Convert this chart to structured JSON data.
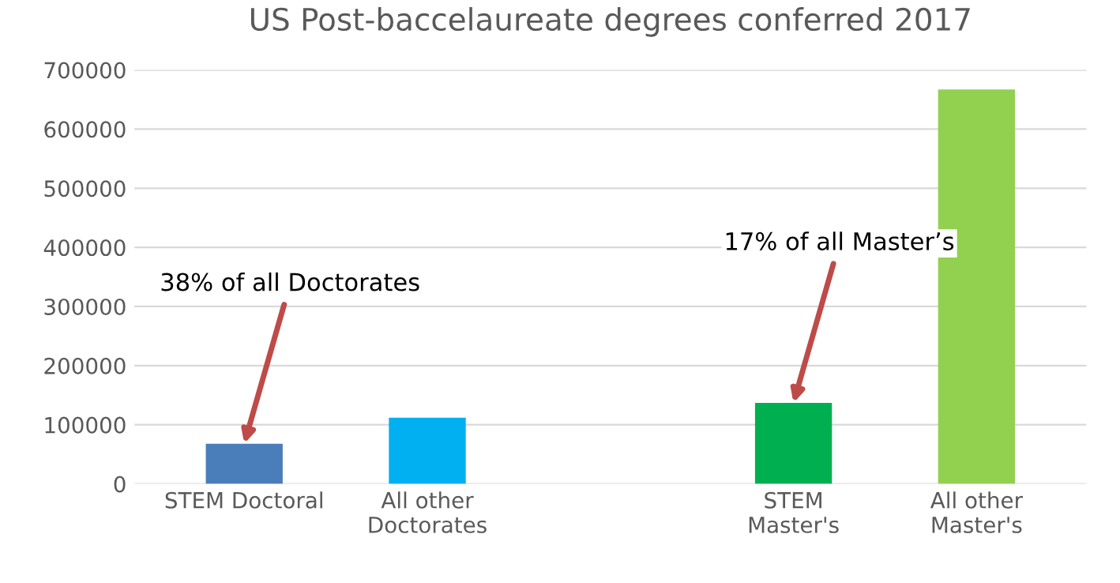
{
  "chart_data": {
    "type": "bar",
    "title": "US Post-baccelaureate degrees conferred 2017",
    "categories": [
      "STEM Doctoral",
      "All other\nDoctorates",
      null,
      "STEM\nMaster's",
      "All other\nMaster's"
    ],
    "values": [
      68000,
      112000,
      null,
      137000,
      667000
    ],
    "colors": [
      "#4a7ebb",
      "#00b0f0",
      "#ffffff",
      "#00b050",
      "#92d050"
    ],
    "ylim": [
      0,
      700000
    ],
    "yticks": [
      0,
      100000,
      200000,
      300000,
      400000,
      500000,
      600000,
      700000
    ],
    "grid": "y",
    "legend": false,
    "annotations": [
      {
        "text": "38% of all Doctorates",
        "x": "STEM Doctoral",
        "y": 68000
      },
      {
        "text": "17% of all Master’s",
        "x": "STEM\nMaster's",
        "y": 137000
      }
    ]
  }
}
